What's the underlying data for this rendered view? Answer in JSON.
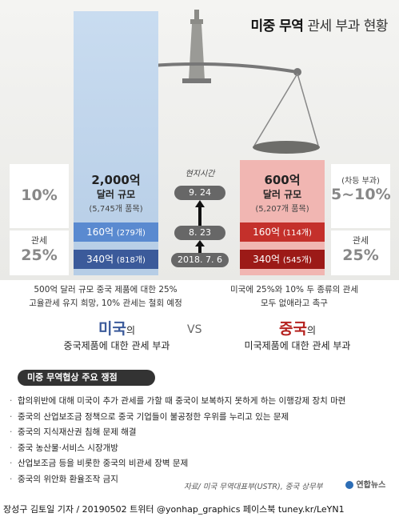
{
  "title": {
    "bold": "미중 무역",
    "rest": " 관세 부과 현황"
  },
  "us": {
    "amount": "2,000억",
    "label": "달러 규모",
    "items": "(5,745개 품목)",
    "side_rate": "10%",
    "tier1": {
      "amount": "160억",
      "items": "(279개)"
    },
    "tier2": {
      "amount": "340억",
      "items": "(818개)"
    },
    "side_label": "관세",
    "side_total": "25%",
    "desc1": "500억 달러 규모 중국 제품에 대한 25%",
    "desc2": "고율관세 유지 희망, 10% 관세는 철회 예정",
    "country": "미국",
    "country_suffix": "의",
    "sub": "중국제품에 대한  관세 부과",
    "color": "#4f71b0"
  },
  "china": {
    "amount": "600억",
    "label": "달러 규모",
    "items": "(5,207개 품목)",
    "side_note": "(차등 부과)",
    "side_rate": "5~10%",
    "tier1": {
      "amount": "160억",
      "items": "(114개)"
    },
    "tier2": {
      "amount": "340억",
      "items": "(545개)"
    },
    "side_label": "관세",
    "side_total": "25%",
    "desc1": "미국에 25%와 10% 두 종류의 관세",
    "desc2": "모두 없애라고 촉구",
    "country": "중국",
    "country_suffix": "의",
    "sub": "미국제품에 대한  관세 부과",
    "color": "#b5221f"
  },
  "timeline": {
    "label": "현지시간",
    "d1": "9. 24",
    "d2": "8. 23",
    "d3": "2018. 7. 6"
  },
  "vs": "VS",
  "issues": {
    "header": "미중 무역협상 주요 쟁점",
    "items": [
      "합의위반에 대해 미국이 추가 관세를 가할 때 중국이 보복하지 못하게 하는 이행강제 장치 마련",
      "중국의 산업보조금 정책으로 중국 기업들이 불공정한 우위를 누리고 있는 문제",
      "중국의 지식재산권 침해 문제 해결",
      "중국 농산물·서비스 시장개방",
      "산업보조금 등을 비롯한 중국의 비관세 장벽 문제",
      "중국의 위안화 환율조작 금지"
    ]
  },
  "source": "자료/ 미국 무역대표부(USTR), 중국 상무부",
  "logo": "연합뉴스",
  "footer": "장성구 김토일 기자 / 20190502  트위터 @yonhap_graphics  페이스북 tuney.kr/LeYN1"
}
